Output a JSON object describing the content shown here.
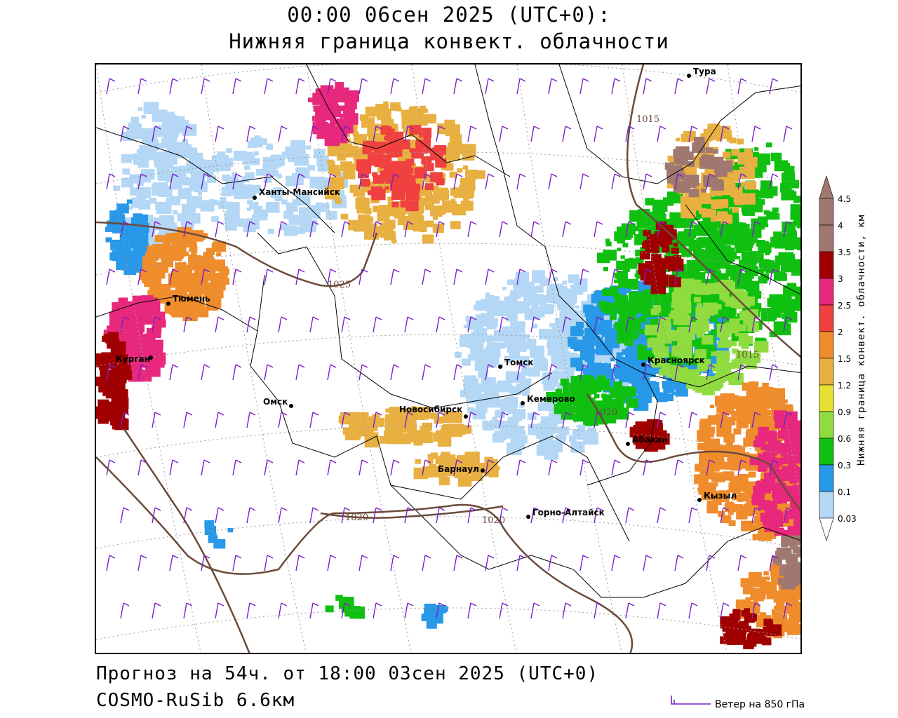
{
  "header": {
    "title_line1": "00:00 06сен 2025 (UTC+0):",
    "title_line2": "Нижняя граница конвект. облачности"
  },
  "footer": {
    "forecast": "Прогноз на 54ч. от 18:00 03сен 2025 (UTC+0)",
    "model": "COSMO-RuSib 6.6км",
    "wind_legend": "Ветер на 850 гПа"
  },
  "colorbar": {
    "title": "Нижняя граница конвект. облачности, км",
    "levels": [
      {
        "label": "0.03",
        "color": "#ededf8"
      },
      {
        "label": "0.1",
        "color": "#b4d7f5"
      },
      {
        "label": "0.3",
        "color": "#2898e8"
      },
      {
        "label": "0.6",
        "color": "#10c010"
      },
      {
        "label": "0.9",
        "color": "#90dc40"
      },
      {
        "label": "1.2",
        "color": "#e8e030"
      },
      {
        "label": "1.5",
        "color": "#e8b040"
      },
      {
        "label": "2",
        "color": "#ef8c2c"
      },
      {
        "label": "2.5",
        "color": "#f04040"
      },
      {
        "label": "3",
        "color": "#e8287c"
      },
      {
        "label": "3.5",
        "color": "#a00000"
      },
      {
        "label": "4",
        "color": "#a07870"
      },
      {
        "label": "4.5",
        "color": "#a07870"
      }
    ]
  },
  "map": {
    "cities": [
      {
        "name": "Тура"
      },
      {
        "name": "Ханты-Мансийск"
      },
      {
        "name": "Тюмень"
      },
      {
        "name": "Курган"
      },
      {
        "name": "Омск"
      },
      {
        "name": "Новосибирск"
      },
      {
        "name": "Томск"
      },
      {
        "name": "Кемерово"
      },
      {
        "name": "Красноярск"
      },
      {
        "name": "Абакан"
      },
      {
        "name": "Барнаул"
      },
      {
        "name": "Горно-Алтайск"
      },
      {
        "name": "Кызыл"
      }
    ],
    "isobars": [
      {
        "label": "1015"
      },
      {
        "label": "1025"
      },
      {
        "label": "1020"
      },
      {
        "label": "1020"
      },
      {
        "label": "1020"
      },
      {
        "label": "1015"
      }
    ],
    "colors": {
      "isobar": "#6b4a3a",
      "border": "#000000",
      "wind": "#7a20c8",
      "grid": "#9a9a9a"
    }
  }
}
